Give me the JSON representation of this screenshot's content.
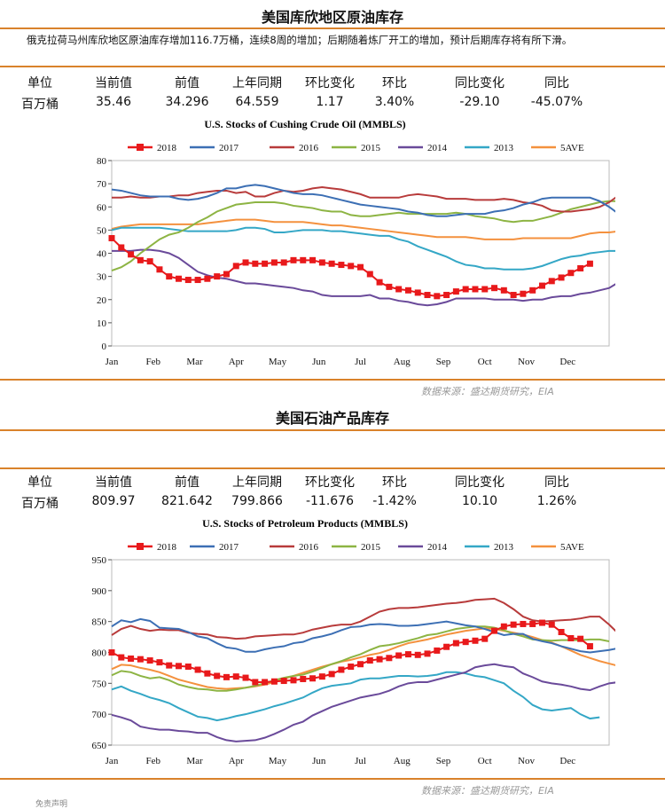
{
  "section1": {
    "title": "美国库欣地区原油库存",
    "paragraph": "俄克拉荷马州库欣地区原油库存增加116.7万桶，连续8周的增加；后期随着炼厂开工的增加，预计后期库存将有所下滑。",
    "headers": [
      "单位",
      "当前值",
      "前值",
      "上年同期",
      "环比变化",
      "环比",
      "同比变化",
      "同比"
    ],
    "values": [
      "百万桶",
      "35.46",
      "34.296",
      "64.559",
      "1.17",
      "3.40%",
      "-29.10",
      "-45.07%"
    ],
    "source": "数据来源：盛达期货研究，EIA"
  },
  "section2": {
    "title": "美国石油产品库存",
    "headers": [
      "单位",
      "当前值",
      "前值",
      "上年同期",
      "环比变化",
      "环比",
      "同比变化",
      "同比"
    ],
    "values": [
      "百万桶",
      "809.97",
      "821.642",
      "799.866",
      "-11.676",
      "-1.42%",
      "10.10",
      "1.26%"
    ],
    "source": "数据来源：盛达期货研究，EIA"
  },
  "bottom_stub": "免责声明",
  "colors": {
    "2018": "#e8191b",
    "2017": "#3c6fb4",
    "2016": "#b83b3b",
    "2015": "#8db443",
    "2014": "#6a4a9a",
    "2013": "#34a7c6",
    "5AVE": "#f4913e",
    "accent": "#d9822b"
  },
  "chart_data": [
    {
      "type": "line",
      "title": "U.S. Stocks of Cushing Crude Oil (MMBLS)",
      "months": [
        "Jan",
        "Feb",
        "Mar",
        "Apr",
        "May",
        "Jun",
        "Jul",
        "Aug",
        "Sep",
        "Oct",
        "Nov",
        "Dec"
      ],
      "ylim": [
        0,
        80
      ],
      "yticks": [
        0,
        10,
        20,
        30,
        40,
        50,
        60,
        70,
        80
      ],
      "xlim": [
        0,
        52
      ],
      "series": [
        {
          "name": "2018",
          "marker": "square",
          "values": [
            46.5,
            42.5,
            39.5,
            37,
            36.5,
            33,
            30,
            29,
            28.5,
            28.5,
            29,
            30,
            31,
            34.5,
            36,
            35.5,
            35.5,
            36,
            36,
            37,
            37,
            37,
            36,
            35.5,
            35,
            34.5,
            34,
            31,
            27.5,
            25.5,
            24.5,
            24,
            23,
            22,
            21.5,
            22,
            23.5,
            24.5,
            24.5,
            24.5,
            25,
            24,
            22,
            22.5,
            24,
            26,
            28,
            29.5,
            31.5,
            33.5,
            35.5
          ]
        },
        {
          "name": "2017",
          "values": [
            67.5,
            67,
            66,
            65,
            64.5,
            64.5,
            64.5,
            63.5,
            63,
            63.5,
            64.5,
            66,
            68,
            68,
            69,
            69.5,
            69,
            68,
            67,
            66,
            65.5,
            65.5,
            65,
            64,
            63,
            62,
            61,
            60.5,
            60,
            59.5,
            59,
            58,
            57.5,
            56.5,
            56,
            56,
            56.5,
            57,
            57,
            57,
            58,
            58.5,
            59.5,
            61,
            62,
            63.5,
            64,
            64,
            64,
            64,
            64,
            62.5,
            60,
            57,
            54,
            52,
            50.5
          ]
        },
        {
          "name": "2016",
          "values": [
            64,
            64,
            64.5,
            64,
            64,
            64.5,
            64.5,
            65,
            65,
            66,
            66.5,
            67,
            67,
            66,
            66.5,
            64.5,
            64.5,
            66,
            67,
            66.5,
            67,
            68,
            68.5,
            68,
            67.5,
            66.5,
            65.5,
            64,
            64,
            64,
            64,
            65,
            65.5,
            65,
            64.5,
            63.5,
            63.5,
            63.5,
            63,
            63,
            63,
            63.5,
            63,
            62,
            61.5,
            60.5,
            58.5,
            58,
            58,
            58.5,
            59,
            60,
            62,
            65,
            66,
            66,
            66,
            66
          ]
        },
        {
          "name": "2015",
          "values": [
            32.5,
            34,
            36.5,
            40,
            43,
            46,
            48,
            49,
            51,
            53.5,
            55.5,
            58,
            59.5,
            61,
            61.5,
            62,
            62,
            62,
            61.5,
            60.5,
            60,
            59.5,
            58.5,
            58,
            58,
            56.5,
            56,
            56,
            56.5,
            57,
            57.5,
            57,
            57,
            57,
            57,
            57,
            57.5,
            57,
            56,
            55.5,
            55,
            54,
            53.5,
            54,
            54,
            55,
            56,
            57.5,
            59,
            60,
            61,
            62,
            62.5,
            62.5
          ]
        },
        {
          "name": "2014",
          "values": [
            41,
            41,
            41,
            41.5,
            41.5,
            41,
            40,
            38,
            35,
            32,
            30.5,
            29.5,
            29,
            28,
            27,
            27,
            26.5,
            26,
            25.5,
            25,
            24,
            23.5,
            22,
            21.5,
            21.5,
            21.5,
            21.5,
            22,
            20.5,
            20.5,
            19.5,
            19,
            18,
            17.5,
            18,
            19,
            20.5,
            20.5,
            20.5,
            20.5,
            20,
            20,
            20,
            19.5,
            20,
            20,
            21,
            21.5,
            21.5,
            22.5,
            23,
            24,
            25,
            27.5,
            29,
            30.5
          ]
        },
        {
          "name": "2013",
          "values": [
            50,
            51,
            51,
            51,
            51,
            51,
            50.5,
            50,
            49.5,
            49.5,
            49.5,
            49.5,
            49.5,
            50,
            51,
            51,
            50.5,
            49,
            49,
            49.5,
            50,
            50,
            50,
            49.5,
            49.5,
            49,
            48.5,
            48,
            47.5,
            47.5,
            46,
            45,
            43,
            41.5,
            40,
            38.5,
            36.5,
            35,
            34.5,
            33.5,
            33.5,
            33,
            33,
            33,
            33.5,
            34.5,
            36,
            37.5,
            38.5,
            39,
            40,
            40.5,
            41,
            41,
            40.5,
            40,
            39.5
          ]
        },
        {
          "name": "5AVE",
          "values": [
            50.5,
            51.5,
            52,
            52.5,
            52.5,
            52.5,
            52.5,
            52.5,
            52.5,
            52.5,
            53,
            53.5,
            54,
            54.5,
            54.5,
            54.5,
            54,
            53.5,
            53.5,
            53.5,
            53.5,
            53,
            52.5,
            52,
            52,
            51.5,
            51,
            50.5,
            50,
            49.5,
            49,
            48.5,
            48,
            47.5,
            47,
            47,
            47,
            47,
            46.5,
            46,
            46,
            46,
            46,
            46.5,
            46.5,
            46.5,
            46.5,
            46.5,
            46.5,
            47.5,
            48.5,
            49,
            49,
            49.5,
            49.5,
            50,
            50.5
          ]
        }
      ]
    },
    {
      "type": "line",
      "title": "U.S. Stocks of Petroleum Products (MMBLS)",
      "months": [
        "Jan",
        "Feb",
        "Mar",
        "Apr",
        "May",
        "Jun",
        "Jul",
        "Aug",
        "Sep",
        "Oct",
        "Nov",
        "Dec"
      ],
      "ylim": [
        650,
        950
      ],
      "yticks": [
        650,
        700,
        750,
        800,
        850,
        900,
        950
      ],
      "xlim": [
        0,
        52
      ],
      "series": [
        {
          "name": "2018",
          "marker": "square",
          "values": [
            800,
            792,
            790,
            789,
            787,
            784,
            779,
            778,
            777,
            772,
            766,
            762,
            760,
            761,
            759,
            752,
            752,
            753,
            754,
            755,
            757,
            758,
            761,
            765,
            772,
            777,
            781,
            787,
            789,
            791,
            795,
            797,
            796,
            798,
            803,
            809,
            815,
            817,
            819,
            822,
            835,
            842,
            845,
            846,
            846,
            848,
            845,
            833,
            823,
            822,
            810
          ]
        },
        {
          "name": "2017",
          "values": [
            842,
            852,
            849,
            854,
            851,
            840,
            839,
            838,
            833,
            826,
            823,
            815,
            808,
            806,
            801,
            801,
            805,
            808,
            810,
            815,
            817,
            823,
            826,
            830,
            836,
            841,
            842,
            845,
            846,
            845,
            843,
            843,
            844,
            846,
            848,
            850,
            847,
            844,
            842,
            838,
            833,
            828,
            830,
            830,
            822,
            818,
            815,
            810,
            806,
            802,
            800,
            802,
            804,
            807,
            800,
            795,
            792
          ]
        },
        {
          "name": "2016",
          "values": [
            828,
            838,
            843,
            838,
            835,
            837,
            836,
            836,
            832,
            830,
            829,
            825,
            824,
            822,
            823,
            826,
            827,
            828,
            829,
            829,
            832,
            837,
            840,
            843,
            845,
            845,
            850,
            858,
            866,
            870,
            872,
            872,
            873,
            875,
            877,
            879,
            880,
            882,
            885,
            886,
            887,
            880,
            870,
            858,
            852,
            850,
            851,
            852,
            853,
            855,
            858,
            858,
            845,
            830
          ]
        },
        {
          "name": "2015",
          "values": [
            763,
            770,
            768,
            762,
            758,
            760,
            755,
            748,
            744,
            741,
            740,
            738,
            738,
            740,
            743,
            746,
            750,
            755,
            759,
            762,
            764,
            769,
            775,
            781,
            786,
            792,
            797,
            804,
            810,
            812,
            815,
            819,
            823,
            828,
            830,
            834,
            838,
            840,
            842,
            842,
            840,
            836,
            830,
            826,
            821,
            820,
            819,
            820,
            820,
            820,
            821,
            821,
            818
          ]
        },
        {
          "name": "2014",
          "values": [
            699,
            695,
            690,
            680,
            677,
            675,
            675,
            673,
            672,
            670,
            670,
            663,
            658,
            656,
            657,
            658,
            662,
            668,
            675,
            683,
            688,
            698,
            705,
            712,
            717,
            722,
            727,
            730,
            733,
            738,
            745,
            750,
            752,
            752,
            756,
            760,
            764,
            768,
            776,
            779,
            781,
            778,
            776,
            766,
            760,
            753,
            750,
            748,
            745,
            741,
            739,
            745,
            750,
            752,
            750,
            754
          ]
        },
        {
          "name": "2013",
          "values": [
            740,
            745,
            738,
            733,
            727,
            723,
            718,
            710,
            703,
            696,
            694,
            690,
            693,
            697,
            700,
            704,
            708,
            713,
            717,
            722,
            727,
            735,
            742,
            746,
            748,
            750,
            756,
            758,
            758,
            760,
            762,
            762,
            761,
            762,
            764,
            768,
            768,
            766,
            762,
            760,
            755,
            750,
            738,
            728,
            715,
            708,
            706,
            708,
            710,
            700,
            693,
            695
          ]
        },
        {
          "name": "5AVE",
          "values": [
            773,
            780,
            779,
            775,
            772,
            768,
            762,
            756,
            752,
            748,
            744,
            742,
            741,
            742,
            743,
            745,
            748,
            752,
            757,
            762,
            767,
            772,
            777,
            781,
            785,
            788,
            792,
            796,
            799,
            804,
            810,
            815,
            818,
            821,
            825,
            829,
            832,
            835,
            837,
            839,
            838,
            835,
            832,
            829,
            825,
            820,
            816,
            810,
            803,
            796,
            791,
            786,
            782,
            778
          ]
        }
      ]
    }
  ]
}
